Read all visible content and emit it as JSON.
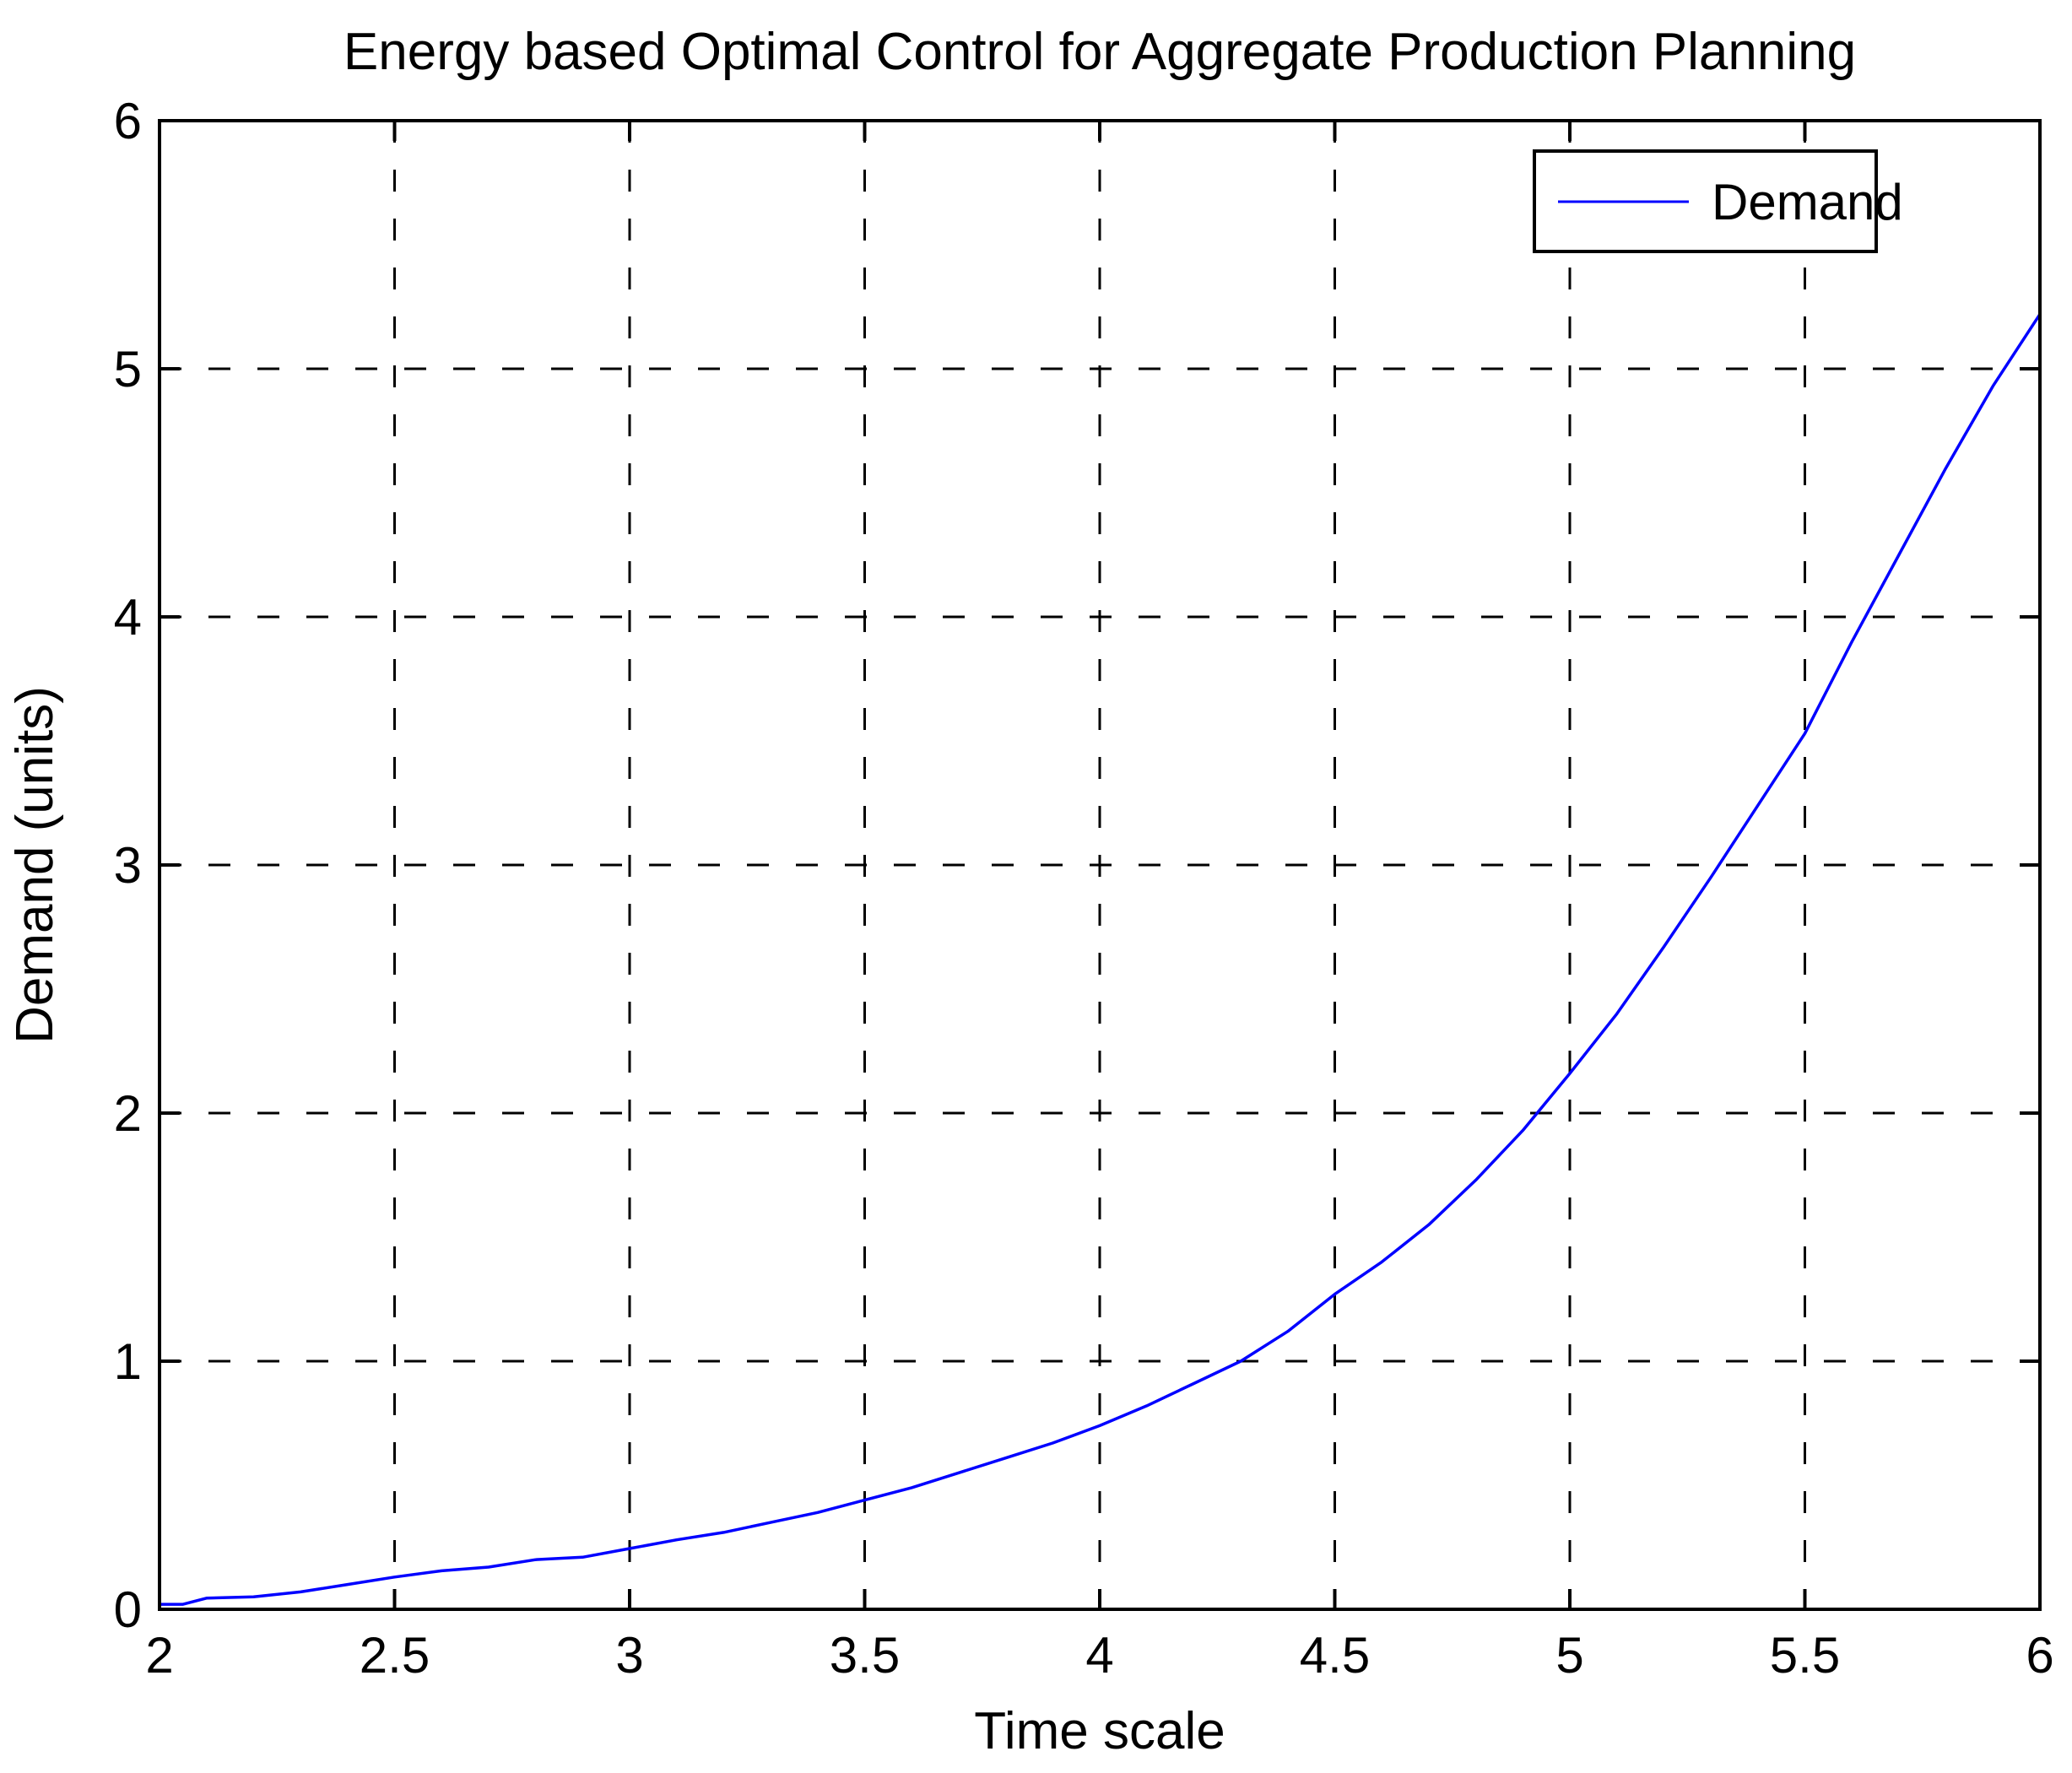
{
  "figure": {
    "background": "#ffffff",
    "axes_color": "#000000",
    "grid_style": "dashed"
  },
  "chart_data": {
    "type": "line",
    "title": "Energy based Optimal Control for Aggregate Production Planning",
    "xlabel": "Time scale",
    "ylabel": "Demand (units)",
    "xlim": [
      2,
      6
    ],
    "ylim": [
      0,
      6
    ],
    "xticks": [
      "2",
      "2.5",
      "3",
      "3.5",
      "4",
      "4.5",
      "5",
      "5.5",
      "6"
    ],
    "yticks": [
      "0",
      "1",
      "2",
      "3",
      "4",
      "5",
      "6"
    ],
    "grid": "on",
    "legend": {
      "position": "top-right",
      "entries": [
        {
          "label": "Demand",
          "color": "#0000ff"
        }
      ]
    },
    "series": [
      {
        "name": "Demand",
        "color": "#0000ff",
        "x": [
          2.0,
          2.05,
          2.1,
          2.2,
          2.3,
          2.4,
          2.5,
          2.6,
          2.7,
          2.8,
          2.9,
          3.0,
          3.1,
          3.2,
          3.3,
          3.4,
          3.5,
          3.6,
          3.7,
          3.8,
          3.9,
          4.0,
          4.1,
          4.2,
          4.3,
          4.4,
          4.5,
          4.6,
          4.7,
          4.8,
          4.9,
          5.0,
          5.1,
          5.2,
          5.3,
          5.4,
          5.5,
          5.6,
          5.7,
          5.8,
          5.9,
          6.0
        ],
        "y": [
          0.02,
          0.02,
          0.045,
          0.05,
          0.07,
          0.1,
          0.13,
          0.155,
          0.17,
          0.2,
          0.21,
          0.245,
          0.28,
          0.31,
          0.35,
          0.39,
          0.44,
          0.49,
          0.55,
          0.61,
          0.67,
          0.74,
          0.82,
          0.91,
          1.0,
          1.12,
          1.27,
          1.4,
          1.55,
          1.73,
          1.93,
          2.16,
          2.4,
          2.67,
          2.95,
          3.24,
          3.53,
          3.9,
          4.25,
          4.6,
          4.93,
          5.22
        ]
      }
    ]
  }
}
